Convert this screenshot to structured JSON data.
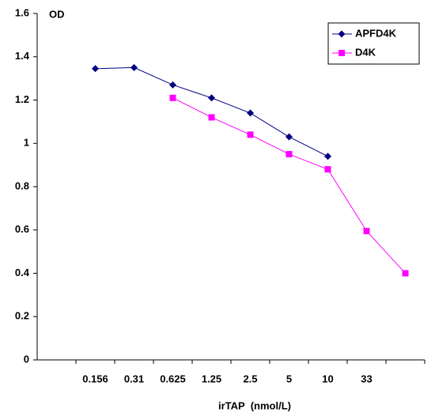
{
  "chart_data": {
    "type": "line",
    "y_label": "OD",
    "x_label": "irTAP  (nmol/L)",
    "categories": [
      null,
      "0.156",
      "0.31",
      "0.625",
      "1.25",
      "2.5",
      "5",
      "10",
      "33",
      null
    ],
    "series": [
      {
        "name": "APFD4K",
        "color": "#000080",
        "marker": "diamond",
        "values": [
          null,
          1.345,
          1.35,
          1.27,
          1.21,
          1.14,
          1.03,
          0.94,
          null,
          null
        ]
      },
      {
        "name": "D4K",
        "color": "#ff00ff",
        "marker": "square",
        "values": [
          null,
          null,
          null,
          1.21,
          1.12,
          1.04,
          0.95,
          0.88,
          0.595,
          0.4
        ]
      }
    ],
    "ylim": [
      0,
      1.6
    ],
    "yticks": [
      0,
      0.2,
      0.4,
      0.6,
      0.8,
      1,
      1.2,
      1.4,
      1.6
    ],
    "legend": "upper right"
  }
}
